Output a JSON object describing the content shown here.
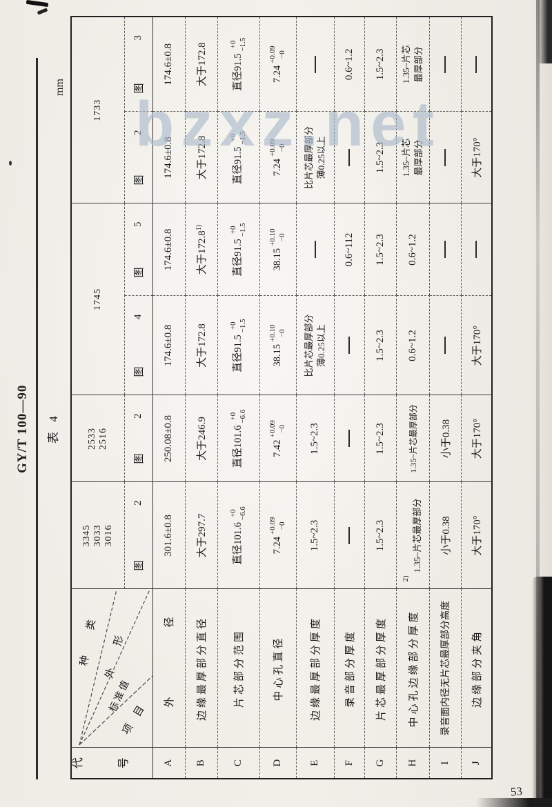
{
  "header": {
    "standard_number": "GY/T 100—90",
    "table_label": "表 4",
    "unit": "mm"
  },
  "watermark": {
    "text": "bzxz.net",
    "color": "#acbbcc"
  },
  "footer": {
    "page_number": "53"
  },
  "corner": {
    "wedge_top": "种 类",
    "wedge_shape": "外 形",
    "wedge_value": "标准值",
    "wedge_item": "项 目",
    "code_header": [
      "代",
      "号"
    ]
  },
  "columns": {
    "fig_char": "图",
    "groups": [
      {
        "models": [
          "3345",
          "3033",
          "3016"
        ]
      },
      {
        "models": [
          "2533",
          "2516"
        ]
      },
      {
        "models": [
          "1745"
        ]
      },
      {
        "models": [
          "1733"
        ]
      }
    ],
    "figs": [
      "2",
      "2",
      "4",
      "5",
      "2",
      "3"
    ]
  },
  "rows": [
    {
      "code": "A",
      "item": "外径",
      "cls": "spread",
      "cells": [
        {
          "t": "txt",
          "v": "301.6±0.8"
        },
        {
          "t": "txt",
          "v": "250.08±0.8"
        },
        {
          "t": "txt",
          "v": "174.6±0.8"
        },
        {
          "t": "txt",
          "v": "174.6±0.8"
        },
        {
          "t": "txt",
          "v": "174.6±0.8"
        },
        {
          "t": "txt",
          "v": "174.6±0.8"
        }
      ]
    },
    {
      "code": "B",
      "item": "边缘最厚部分直径",
      "cls": "",
      "cells": [
        {
          "t": "txt",
          "v": "大于297.7"
        },
        {
          "t": "txt",
          "v": "大于246.9"
        },
        {
          "t": "txt",
          "v": "大于172.8"
        },
        {
          "t": "sup",
          "v": "大于172.8",
          "s": "1)"
        },
        {
          "t": "txt",
          "v": "大于172.8"
        },
        {
          "t": "txt",
          "v": "大于172.8"
        }
      ]
    },
    {
      "code": "C",
      "item": "片芯部分范围",
      "cls": "",
      "cells": [
        {
          "t": "tol",
          "v": "直径101.6",
          "p": "+0",
          "m": "−6.6"
        },
        {
          "t": "tol",
          "v": "直径101.6",
          "p": "+0",
          "m": "−6.6"
        },
        {
          "t": "tol",
          "v": "直径91.5",
          "p": "+0",
          "m": "−1.5"
        },
        {
          "t": "tol",
          "v": "直径91.5",
          "p": "+0",
          "m": "−1.5"
        },
        {
          "t": "tol",
          "v": "直径91.5",
          "p": "+0",
          "m": "−1.5"
        },
        {
          "t": "tol",
          "v": "直径91.5",
          "p": "+0",
          "m": "−1.5"
        }
      ]
    },
    {
      "code": "D",
      "item": "中心孔直径",
      "cls": "",
      "cells": [
        {
          "t": "tol",
          "v": "7.24",
          "p": "+0.09",
          "m": "−0"
        },
        {
          "t": "tol",
          "v": "7.42",
          "p": "+0.09",
          "m": "−0"
        },
        {
          "t": "tol",
          "v": "38.15",
          "p": "+0.10",
          "m": "−0"
        },
        {
          "t": "tol",
          "v": "38.15",
          "p": "+0.10",
          "m": "−0"
        },
        {
          "t": "tol",
          "v": "7.24",
          "p": "+0.09",
          "m": "−0"
        },
        {
          "t": "tol",
          "v": "7.24",
          "p": "+0.09",
          "m": "−0"
        }
      ]
    },
    {
      "code": "E",
      "item": "边缘最厚部分厚度",
      "cls": "",
      "cells": [
        {
          "t": "txt",
          "v": "1.5~2.3"
        },
        {
          "t": "txt",
          "v": "1.5~2.3"
        },
        {
          "t": "two",
          "a": "比片芯最厚部分",
          "b": "薄0.25以上"
        },
        {
          "t": "dash"
        },
        {
          "t": "two",
          "a": "比片芯最厚部分",
          "b": "薄0.25以上"
        },
        {
          "t": "dash"
        }
      ]
    },
    {
      "code": "F",
      "item": "录音部分厚度",
      "cls": "",
      "cells": [
        {
          "t": "dash"
        },
        {
          "t": "dash"
        },
        {
          "t": "dash"
        },
        {
          "t": "txt",
          "v": "0.6~112"
        },
        {
          "t": "dash"
        },
        {
          "t": "txt",
          "v": "0.6~1.2"
        }
      ]
    },
    {
      "code": "G",
      "item": "片芯最厚部分厚度",
      "cls": "",
      "cells": [
        {
          "t": "txt",
          "v": "1.5~2.3"
        },
        {
          "t": "txt",
          "v": "1.5~2.3"
        },
        {
          "t": "txt",
          "v": "1.5~2.3"
        },
        {
          "t": "txt",
          "v": "1.5~2.3"
        },
        {
          "t": "txt",
          "v": "1.5~2.3"
        },
        {
          "t": "txt",
          "v": "1.5~2.3"
        }
      ]
    },
    {
      "code": "H",
      "item": "中心孔边缘部分厚度",
      "cls": "",
      "cells": [
        {
          "t": "marked",
          "s": "2)",
          "v": "1.35~片芯最厚部分"
        },
        {
          "t": "txt",
          "v": "1.35~片芯最厚部分",
          "small": true
        },
        {
          "t": "txt",
          "v": "0.6~1.2"
        },
        {
          "t": "txt",
          "v": "0.6~1.2"
        },
        {
          "t": "two",
          "a": "1.35~片芯",
          "b": "最厚部分"
        },
        {
          "t": "two",
          "a": "1.35~片芯",
          "b": "最厚部分"
        }
      ]
    },
    {
      "code": "I",
      "item": "录音面内径无片芯最厚部分高度",
      "cls": "tight",
      "cells": [
        {
          "t": "txt",
          "v": "小于0.38"
        },
        {
          "t": "txt",
          "v": "小于0.38"
        },
        {
          "t": "dash"
        },
        {
          "t": "dash"
        },
        {
          "t": "dash"
        },
        {
          "t": "dash"
        }
      ]
    },
    {
      "code": "J",
      "item": "边缘部分夹角",
      "cls": "",
      "cells": [
        {
          "t": "txt",
          "v": "大于170°"
        },
        {
          "t": "txt",
          "v": "大于170°"
        },
        {
          "t": "txt",
          "v": "大于170°"
        },
        {
          "t": "dash"
        },
        {
          "t": "txt",
          "v": "大于170°"
        },
        {
          "t": "dash"
        }
      ]
    }
  ]
}
